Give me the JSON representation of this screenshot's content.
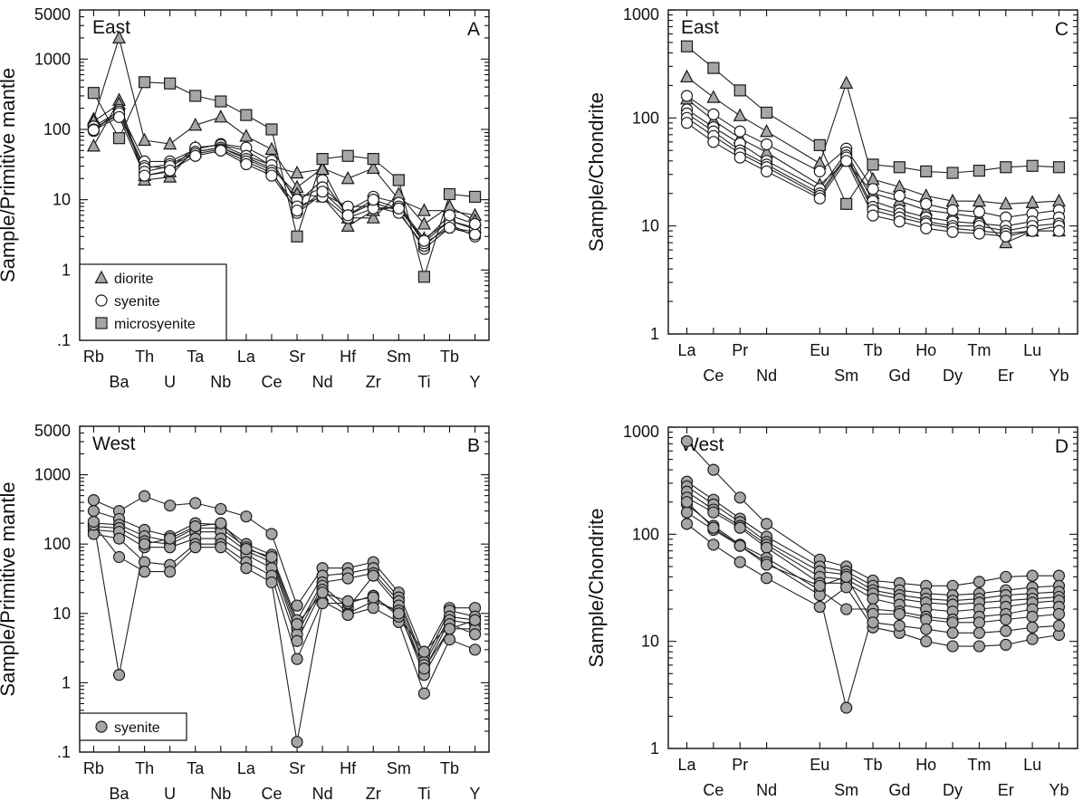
{
  "panels": [
    {
      "id": "A",
      "panel_label": "A",
      "region_label": "East",
      "ylabel": "Sample/Primitive mantle",
      "y_tick_labels": [
        "5000",
        "1000",
        "100",
        "10",
        "1",
        ".1"
      ],
      "categories_row1": [
        "Rb",
        "Th",
        "Ta",
        "La",
        "Sr",
        "Hf",
        "Sm",
        "Tb"
      ],
      "categories_row2": [
        "Ba",
        "U",
        "Nb",
        "Ce",
        "Nd",
        "Zr",
        "Ti",
        "Y"
      ],
      "legend": [
        "diorite",
        "syenite",
        "microsyenite"
      ]
    },
    {
      "id": "B",
      "panel_label": "B",
      "region_label": "West",
      "ylabel": "Sample/Primitive mantle",
      "y_tick_labels": [
        "5000",
        "1000",
        "100",
        "10",
        "1",
        ".1"
      ],
      "categories_row1": [
        "Rb",
        "Th",
        "Ta",
        "La",
        "Sr",
        "Hf",
        "Sm",
        "Tb"
      ],
      "categories_row2": [
        "Ba",
        "U",
        "Nb",
        "Ce",
        "Nd",
        "Zr",
        "Ti",
        "Y"
      ],
      "legend": [
        "syenite"
      ]
    },
    {
      "id": "C",
      "panel_label": "C",
      "region_label": "East",
      "ylabel": "Sample/Chondrite",
      "y_tick_labels": [
        "1000",
        "100",
        "10",
        "1"
      ],
      "categories_row1": [
        "La",
        "Pr",
        "Eu",
        "Tb",
        "Ho",
        "Tm",
        "Lu"
      ],
      "categories_row2": [
        "Ce",
        "Nd",
        "Sm",
        "Gd",
        "Dy",
        "Er",
        "Yb"
      ]
    },
    {
      "id": "D",
      "panel_label": "D",
      "region_label": "West",
      "ylabel": "Sample/Chondrite",
      "y_tick_labels": [
        "1000",
        "100",
        "10",
        "1"
      ],
      "categories_row1": [
        "La",
        "Pr",
        "Eu",
        "Tb",
        "Ho",
        "Tm",
        "Lu"
      ],
      "categories_row2": [
        "Ce",
        "Nd",
        "Sm",
        "Gd",
        "Dy",
        "Er",
        "Yb"
      ]
    }
  ],
  "colors": {
    "fill": "#a6a6a6",
    "open_fill": "#ffffff",
    "stroke": "#1a1a1a"
  },
  "chart_data": [
    {
      "id": "A",
      "type": "line",
      "y_scale": "log",
      "ylim": [
        0.1,
        5000
      ],
      "categories": [
        "Rb",
        "Ba",
        "Th",
        "U",
        "Ta",
        "Nb",
        "La",
        "Ce",
        "Sr",
        "Nd",
        "Hf",
        "Zr",
        "Sm",
        "Ti",
        "Tb",
        "Y"
      ],
      "series": [
        {
          "name": "diorite",
          "marker": "triangle",
          "values": [
            140,
            2000,
            70,
            62,
            115,
            150,
            80,
            52,
            15,
            28,
            20,
            28,
            10,
            7,
            7,
            6
          ]
        },
        {
          "name": "diorite",
          "marker": "triangle",
          "values": [
            58,
            260,
            19,
            21,
            55,
            60,
            50,
            30,
            24,
            27,
            5.5,
            5.5,
            12,
            4.5,
            8,
            5
          ]
        },
        {
          "name": "diorite",
          "marker": "triangle",
          "values": [
            130,
            230,
            22,
            25,
            48,
            55,
            40,
            28,
            12,
            11,
            4.2,
            7,
            8,
            2.8,
            5,
            4
          ]
        },
        {
          "name": "syenite",
          "marker": "circle",
          "values": [
            95,
            190,
            35,
            35,
            52,
            62,
            55,
            36,
            9,
            19,
            6,
            9,
            7,
            2,
            4,
            3.5
          ]
        },
        {
          "name": "syenite",
          "marker": "circle",
          "values": [
            105,
            160,
            30,
            28,
            55,
            60,
            42,
            31,
            10,
            15,
            7,
            11,
            9,
            2.5,
            5,
            3.8
          ]
        },
        {
          "name": "syenite",
          "marker": "circle",
          "values": [
            110,
            180,
            28,
            32,
            48,
            55,
            38,
            26,
            6.5,
            12,
            8,
            8,
            6.5,
            2.2,
            4.5,
            3
          ]
        },
        {
          "name": "syenite",
          "marker": "circle",
          "values": [
            100,
            170,
            25,
            30,
            45,
            52,
            35,
            24,
            8,
            11,
            5.5,
            7.5,
            8,
            2.4,
            4,
            3.2
          ]
        },
        {
          "name": "syenite",
          "marker": "circle",
          "values": [
            98,
            150,
            22,
            26,
            42,
            50,
            32,
            22,
            7,
            13,
            6,
            10,
            7.5,
            2.6,
            6,
            4.5
          ]
        },
        {
          "name": "microsyenite",
          "marker": "square",
          "values": [
            330,
            75,
            470,
            450,
            300,
            250,
            160,
            100,
            3,
            38,
            42,
            38,
            19,
            0.8,
            12,
            11
          ]
        }
      ]
    },
    {
      "id": "B",
      "type": "line",
      "y_scale": "log",
      "ylim": [
        0.1,
        5000
      ],
      "categories": [
        "Rb",
        "Ba",
        "Th",
        "U",
        "Ta",
        "Nb",
        "La",
        "Ce",
        "Sr",
        "Nd",
        "Hf",
        "Zr",
        "Sm",
        "Ti",
        "Tb",
        "Y"
      ],
      "series": [
        {
          "name": "syenite",
          "marker": "circle",
          "values": [
            430,
            300,
            490,
            360,
            390,
            320,
            250,
            140,
            13,
            45,
            45,
            55,
            20,
            2.5,
            12,
            12
          ]
        },
        {
          "name": "syenite",
          "marker": "circle",
          "values": [
            300,
            230,
            160,
            130,
            200,
            190,
            100,
            70,
            8,
            35,
            38,
            45,
            17,
            2,
            11,
            9
          ]
        },
        {
          "name": "syenite",
          "marker": "circle",
          "values": [
            200,
            190,
            130,
            110,
            170,
            170,
            90,
            60,
            6,
            28,
            32,
            38,
            15,
            1.8,
            9,
            8
          ]
        },
        {
          "name": "syenite",
          "marker": "circle",
          "values": [
            180,
            170,
            110,
            100,
            150,
            150,
            80,
            55,
            5,
            25,
            12,
            35,
            13,
            1.5,
            8,
            7
          ]
        },
        {
          "name": "syenite",
          "marker": "circle",
          "values": [
            160,
            150,
            90,
            90,
            120,
            120,
            70,
            45,
            4,
            22,
            10,
            15,
            11,
            1.3,
            6,
            6
          ]
        },
        {
          "name": "syenite",
          "marker": "circle",
          "values": [
            140,
            120,
            55,
            50,
            100,
            100,
            55,
            35,
            2.2,
            15,
            9.5,
            12,
            7.5,
            0.7,
            4.2,
            3
          ]
        },
        {
          "name": "syenite",
          "marker": "circle",
          "values": [
            190,
            65,
            40,
            40,
            90,
            90,
            45,
            28,
            0.14,
            14,
            14,
            18,
            9,
            2.8,
            7,
            5
          ]
        },
        {
          "name": "syenite",
          "marker": "circle",
          "values": [
            210,
            1.3,
            100,
            120,
            180,
            200,
            85,
            65,
            7,
            20,
            15,
            17,
            10,
            1.6,
            6,
            8
          ]
        }
      ]
    },
    {
      "id": "C",
      "type": "line",
      "y_scale": "log",
      "ylim": [
        1,
        1000
      ],
      "categories": [
        "La",
        "Ce",
        "Pr",
        "Nd",
        "Sm",
        "Eu",
        "Gd",
        "Tb",
        "Dy",
        "Ho",
        "Er",
        "Tm",
        "Yb",
        "Lu"
      ],
      "x_positions": [
        1,
        2,
        3,
        4,
        6,
        7,
        8,
        9,
        10,
        11,
        12,
        13,
        14,
        15
      ],
      "series": [
        {
          "name": "diorite",
          "marker": "triangle",
          "values": [
            240,
            155,
            105,
            75,
            38,
            210,
            27,
            23,
            19,
            17,
            17,
            16,
            16.5,
            17
          ]
        },
        {
          "name": "diorite",
          "marker": "triangle",
          "values": [
            150,
            95,
            65,
            48,
            24,
            40,
            20,
            17,
            14,
            13,
            12,
            7,
            9,
            9
          ]
        },
        {
          "name": "syenite",
          "marker": "circle",
          "values": [
            160,
            108,
            75,
            57,
            32,
            52,
            22,
            19,
            16,
            14,
            13.5,
            12,
            13,
            14
          ]
        },
        {
          "name": "syenite",
          "marker": "circle",
          "values": [
            120,
            82,
            58,
            40,
            22,
            48,
            17,
            14,
            12,
            11,
            10.5,
            10,
            11,
            12
          ]
        },
        {
          "name": "syenite",
          "marker": "circle",
          "values": [
            110,
            75,
            50,
            37,
            20,
            45,
            15,
            13,
            11,
            10,
            10,
            9,
            10,
            10.5
          ]
        },
        {
          "name": "syenite",
          "marker": "circle",
          "values": [
            100,
            68,
            47,
            35,
            19,
            43,
            14,
            12,
            10.5,
            9.5,
            9,
            8.5,
            9,
            10
          ]
        },
        {
          "name": "syenite",
          "marker": "circle",
          "values": [
            90,
            60,
            43,
            32,
            18,
            40,
            12.5,
            11,
            9.5,
            8.8,
            8.5,
            8,
            9,
            9
          ]
        },
        {
          "name": "microsyenite",
          "marker": "square",
          "values": [
            460,
            290,
            180,
            112,
            56,
            16,
            37,
            35,
            32,
            31,
            32.5,
            35,
            36,
            35
          ]
        }
      ]
    },
    {
      "id": "D",
      "type": "line",
      "y_scale": "log",
      "ylim": [
        1,
        1000
      ],
      "categories": [
        "La",
        "Ce",
        "Pr",
        "Nd",
        "Sm",
        "Eu",
        "Gd",
        "Tb",
        "Dy",
        "Ho",
        "Er",
        "Tm",
        "Yb",
        "Lu"
      ],
      "x_positions": [
        1,
        2,
        3,
        4,
        6,
        7,
        8,
        9,
        10,
        11,
        12,
        13,
        14,
        15
      ],
      "series": [
        {
          "name": "syenite",
          "marker": "circle",
          "values": [
            740,
            400,
            220,
            125,
            58,
            50,
            37,
            35,
            33,
            33,
            36,
            40,
            41,
            41
          ]
        },
        {
          "name": "syenite",
          "marker": "circle",
          "values": [
            310,
            210,
            140,
            95,
            50,
            45,
            33,
            30,
            28,
            27,
            28,
            30,
            32,
            33
          ]
        },
        {
          "name": "syenite",
          "marker": "circle",
          "values": [
            280,
            190,
            130,
            85,
            45,
            42,
            30,
            27,
            25,
            24,
            25,
            27,
            28,
            29
          ]
        },
        {
          "name": "syenite",
          "marker": "circle",
          "values": [
            250,
            170,
            120,
            80,
            40,
            38,
            28,
            25,
            23,
            22,
            23,
            24,
            25,
            26
          ]
        },
        {
          "name": "syenite",
          "marker": "circle",
          "values": [
            220,
            160,
            115,
            75,
            35,
            35,
            25,
            22,
            20,
            19,
            20,
            21,
            23,
            24
          ]
        },
        {
          "name": "syenite",
          "marker": "circle",
          "values": [
            190,
            120,
            80,
            60,
            30,
            20,
            20,
            19,
            17,
            16,
            17,
            18,
            20,
            21
          ]
        },
        {
          "name": "syenite",
          "marker": "circle",
          "values": [
            160,
            110,
            78,
            55,
            27,
            2.4,
            18,
            18,
            16,
            15,
            15,
            16,
            17,
            18
          ]
        },
        {
          "name": "syenite",
          "marker": "circle",
          "values": [
            125,
            80,
            55,
            39,
            21,
            32,
            13.5,
            12,
            10,
            9,
            9,
            9.3,
            10.5,
            11.5
          ]
        },
        {
          "name": "syenite",
          "marker": "circle",
          "values": [
            200,
            115,
            78,
            52,
            33,
            40,
            15,
            14,
            13,
            12,
            12,
            12.5,
            13.5,
            14
          ]
        }
      ]
    }
  ]
}
